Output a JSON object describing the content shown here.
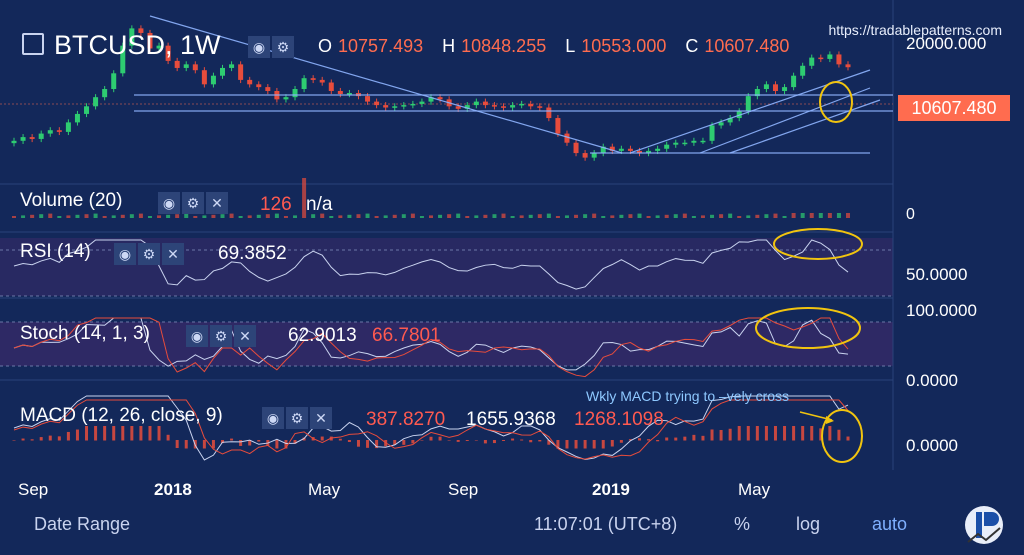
{
  "header": {
    "symbol": "BTCUSD, 1W",
    "ohlc": [
      {
        "k": "O",
        "v": "10757.493"
      },
      {
        "k": "H",
        "v": "10848.255"
      },
      {
        "k": "L",
        "v": "10553.000"
      },
      {
        "k": "C",
        "v": "10607.480"
      }
    ],
    "watermark": "https://tradablepatterns.com"
  },
  "price_axis": {
    "top_label": "20000.000",
    "last_price": "10607.480"
  },
  "panes": {
    "volume": {
      "label": "Volume (20)",
      "value": "126",
      "extra": "n/a",
      "axis_label": "0"
    },
    "rsi": {
      "label": "RSI (14)",
      "value": "69.3852",
      "axis_label": "50.0000"
    },
    "stoch": {
      "label": "Stoch (14, 1, 3)",
      "k_value": "62.9013",
      "d_value": "66.7801",
      "axis_top": "100.0000",
      "axis_bottom": "0.0000"
    },
    "macd": {
      "label": "MACD (12, 26, close, 9)",
      "macd": "387.8270",
      "signal": "1655.9368",
      "hist": "1268.1098",
      "axis_label": "0.0000"
    }
  },
  "annotation": "Wkly MACD trying to –vely cross",
  "x_ticks": [
    {
      "label": "Sep",
      "bold": false
    },
    {
      "label": "2018",
      "bold": true
    },
    {
      "label": "May",
      "bold": false
    },
    {
      "label": "Sep",
      "bold": false
    },
    {
      "label": "2019",
      "bold": true
    },
    {
      "label": "May",
      "bold": false
    }
  ],
  "bottom_bar": {
    "date_range": "Date Range",
    "time": "11:07:01 (UTC+8)",
    "percent": "%",
    "log": "log",
    "auto": "auto"
  },
  "colors": {
    "background": "#13285a",
    "bull": "#2ecc71",
    "bear": "#e74c3c",
    "highlight": "#ff6c4f",
    "trendline": "#8fb4ff",
    "annotation_circle": "#f1c40f",
    "pane_band": "#3a2a6a"
  },
  "chart_data": {
    "type": "candlestick",
    "timeframe": "1W",
    "period": {
      "start": "2017-08",
      "end": "2019-07"
    },
    "last_close": 10607.48,
    "price_series": [
      4100,
      4300,
      4200,
      4500,
      4700,
      4600,
      5200,
      5800,
      6400,
      7200,
      8000,
      9800,
      14000,
      17500,
      16500,
      13500,
      14000,
      11500,
      10500,
      11000,
      10200,
      8500,
      9500,
      10500,
      11000,
      9000,
      8500,
      8200,
      7800,
      7000,
      7200,
      8000,
      9200,
      9000,
      8700,
      7800,
      7500,
      7600,
      7300,
      6800,
      6500,
      6300,
      6400,
      6500,
      6600,
      6800,
      7200,
      7000,
      6400,
      6200,
      6500,
      6800,
      6500,
      6400,
      6300,
      6500,
      6600,
      6400,
      6300,
      5500,
      4500,
      4000,
      3500,
      3300,
      3500,
      3800,
      3600,
      3700,
      3600,
      3500,
      3600,
      3700,
      3900,
      4000,
      4000,
      4100,
      4100,
      5000,
      5200,
      5500,
      6000,
      7300,
      8000,
      8500,
      7800,
      8200,
      9500,
      10800,
      12000,
      11800,
      12500,
      11000,
      10600
    ]
  }
}
